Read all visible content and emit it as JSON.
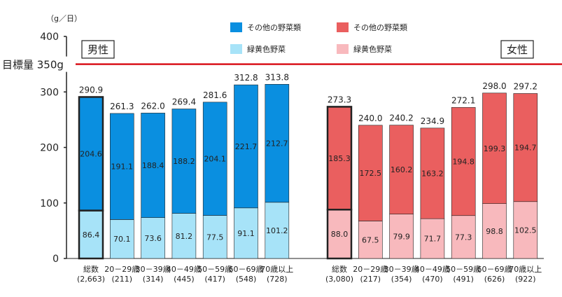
{
  "chart_data": {
    "type": "bar",
    "stacked": true,
    "unit_label": "（g／日）",
    "ylim": [
      0,
      400
    ],
    "y_ticks": [
      "0",
      "100",
      "200",
      "300",
      "400"
    ],
    "target_line": {
      "label": "目標量 350g",
      "value": 350,
      "color": "#d9141c"
    },
    "groups": [
      {
        "name": "男性",
        "legend": [
          {
            "label": "その他の野菜類",
            "color": "#0a8fe0"
          },
          {
            "label": "緑黄色野菜",
            "color": "#a7e3f8"
          }
        ],
        "categories": [
          {
            "label": "総数",
            "n": "(2,663)"
          },
          {
            "label": "20－29歳",
            "n": "(211)"
          },
          {
            "label": "30－39歳",
            "n": "(314)"
          },
          {
            "label": "40－49歳",
            "n": "(445)"
          },
          {
            "label": "50－59歳",
            "n": "(417)"
          },
          {
            "label": "60－69歳",
            "n": "(548)"
          },
          {
            "label": "70歳以上",
            "n": "(728)"
          }
        ],
        "series": [
          {
            "name": "緑黄色野菜",
            "values": [
              86.4,
              70.1,
              73.6,
              81.2,
              77.5,
              91.1,
              101.2
            ]
          },
          {
            "name": "その他の野菜類",
            "values": [
              204.6,
              191.1,
              188.4,
              188.2,
              204.1,
              221.7,
              212.7
            ]
          }
        ],
        "totals": [
          290.9,
          261.3,
          262.0,
          269.4,
          281.6,
          312.8,
          313.8
        ],
        "total_labels": [
          "290.9",
          "261.3",
          "262.0",
          "269.4",
          "281.6",
          "312.8",
          "313.8"
        ],
        "low_labels": [
          "86.4",
          "70.1",
          "73.6",
          "81.2",
          "77.5",
          "91.1",
          "101.2"
        ],
        "high_labels": [
          "204.6",
          "191.1",
          "188.4",
          "188.2",
          "204.1",
          "221.7",
          "212.7"
        ]
      },
      {
        "name": "女性",
        "legend": [
          {
            "label": "その他の野菜類",
            "color": "#ea5f5f"
          },
          {
            "label": "緑黄色野菜",
            "color": "#f8b9bd"
          }
        ],
        "categories": [
          {
            "label": "総数",
            "n": "(3,080)"
          },
          {
            "label": "20－29歳",
            "n": "(217)"
          },
          {
            "label": "30－39歳",
            "n": "(354)"
          },
          {
            "label": "40－49歳",
            "n": "(470)"
          },
          {
            "label": "50－59歳",
            "n": "(491)"
          },
          {
            "label": "60－69歳",
            "n": "(626)"
          },
          {
            "label": "70歳以上",
            "n": "(922)"
          }
        ],
        "series": [
          {
            "name": "緑黄色野菜",
            "values": [
              88.0,
              67.5,
              79.9,
              71.7,
              77.3,
              98.8,
              102.5
            ]
          },
          {
            "name": "その他の野菜類",
            "values": [
              185.3,
              172.5,
              160.2,
              163.2,
              194.8,
              199.3,
              194.7
            ]
          }
        ],
        "totals": [
          273.3,
          240.0,
          240.2,
          234.9,
          272.1,
          298.0,
          297.2
        ],
        "total_labels": [
          "273.3",
          "240.0",
          "240.2",
          "234.9",
          "272.1",
          "298.0",
          "297.2"
        ],
        "low_labels": [
          "88.0",
          "67.5",
          "79.9",
          "71.7",
          "77.3",
          "98.8",
          "102.5"
        ],
        "high_labels": [
          "185.3",
          "172.5",
          "160.2",
          "163.2",
          "194.8",
          "199.3",
          "194.7"
        ]
      }
    ]
  }
}
